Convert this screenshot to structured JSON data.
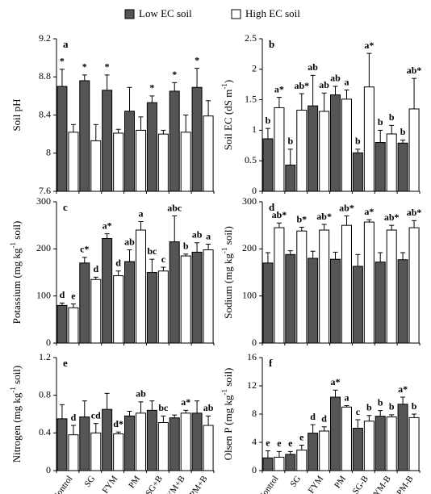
{
  "chart_data": [
    {
      "type": "bar",
      "panel": "a",
      "y_label": "Soil pH",
      "ylim": [
        7.6,
        9.2
      ],
      "yticks": [
        7.6,
        8,
        8.4,
        8.8,
        9.2
      ],
      "series": [
        {
          "name": "Low EC soil",
          "color": "#555555",
          "values": [
            8.7,
            8.76,
            8.66,
            8.44,
            8.53,
            8.65,
            8.69
          ],
          "errors": [
            0.18,
            0.06,
            0.16,
            0.25,
            0.07,
            0.09,
            0.2
          ],
          "labels": [
            "*",
            "*",
            "*",
            null,
            "*",
            "*",
            "*"
          ]
        },
        {
          "name": "High EC soil",
          "color": "#ffffff",
          "values": [
            8.22,
            8.13,
            8.21,
            8.24,
            8.2,
            8.22,
            8.39
          ],
          "errors": [
            0.08,
            0.17,
            0.04,
            0.14,
            0.04,
            0.18,
            0.16
          ]
        }
      ]
    },
    {
      "type": "bar",
      "panel": "b",
      "y_label": [
        "Soil EC (dS m",
        "-1",
        ")"
      ],
      "ylim": [
        0,
        2.5
      ],
      "yticks": [
        0,
        0.5,
        1,
        1.5,
        2,
        2.5
      ],
      "series": [
        {
          "color": "#555555",
          "values": [
            0.86,
            0.43,
            1.4,
            1.58,
            0.63,
            0.8,
            0.79
          ],
          "errors": [
            0.17,
            0.26,
            0.5,
            0.14,
            0.06,
            0.2,
            0.05
          ],
          "labels": [
            "b",
            "b",
            "ab",
            "ab",
            "b",
            "b",
            "b"
          ]
        },
        {
          "color": "#ffffff",
          "values": [
            1.37,
            1.33,
            1.31,
            1.51,
            1.71,
            0.94,
            1.35
          ],
          "errors": [
            0.17,
            0.27,
            0.3,
            0.15,
            0.55,
            0.14,
            0.5
          ],
          "labels": [
            "a*",
            "ab*",
            "ab",
            "a",
            "a*",
            "b",
            "ab*"
          ]
        }
      ]
    },
    {
      "type": "bar",
      "panel": "c",
      "y_label": [
        "Potassium (mg kg",
        "-1",
        " soil)"
      ],
      "ylim": [
        0,
        300
      ],
      "yticks": [
        0,
        100,
        200,
        300
      ],
      "series": [
        {
          "color": "#555555",
          "values": [
            80,
            170,
            222,
            173,
            150,
            215,
            193
          ],
          "errors": [
            5,
            12,
            10,
            25,
            28,
            55,
            20
          ],
          "labels": [
            "d",
            "c*",
            "a*",
            "ab",
            "bc",
            "abc",
            "ab"
          ]
        },
        {
          "color": "#ffffff",
          "values": [
            75,
            135,
            143,
            240,
            153,
            185,
            198
          ],
          "errors": [
            8,
            5,
            10,
            18,
            8,
            4,
            12
          ],
          "labels": [
            "e",
            "d",
            "d",
            "a",
            "c",
            "b",
            "a"
          ]
        }
      ]
    },
    {
      "type": "bar",
      "panel": "d",
      "y_label": [
        "Sodium (mg kg",
        "-1",
        " soil)"
      ],
      "ylim": [
        0,
        300
      ],
      "yticks": [
        0,
        100,
        200,
        300
      ],
      "series": [
        {
          "color": "#555555",
          "values": [
            170,
            188,
            180,
            178,
            163,
            172,
            177
          ],
          "errors": [
            22,
            8,
            15,
            15,
            25,
            20,
            15
          ]
        },
        {
          "color": "#ffffff",
          "values": [
            245,
            238,
            240,
            250,
            257,
            240,
            245
          ],
          "errors": [
            10,
            8,
            12,
            20,
            5,
            10,
            15
          ],
          "labels": [
            "ab*",
            "b*",
            "ab*",
            "ab*",
            "a*",
            "ab*",
            "ab*"
          ]
        }
      ]
    },
    {
      "type": "bar",
      "panel": "e",
      "y_label": [
        "Nitrogen (mg kg",
        "-1",
        " soil)"
      ],
      "ylim": [
        0,
        1.2
      ],
      "yticks": [
        0,
        0.4,
        0.8,
        1.2
      ],
      "categories": [
        "Control",
        "SG",
        "FYM",
        "PM",
        "SG+B",
        "FYM+B",
        "PM+B"
      ],
      "series": [
        {
          "color": "#555555",
          "values": [
            0.55,
            0.57,
            0.65,
            0.58,
            0.64,
            0.56,
            0.61
          ],
          "errors": [
            0.15,
            0.17,
            0.17,
            0.05,
            0.1,
            0.03,
            0.13
          ]
        },
        {
          "color": "#ffffff",
          "values": [
            0.38,
            0.4,
            0.39,
            0.61,
            0.51,
            0.61,
            0.48
          ],
          "errors": [
            0.1,
            0.1,
            0.02,
            0.12,
            0.07,
            0.03,
            0.1
          ],
          "labels": [
            "d",
            "cd",
            "d*",
            "ab",
            "bc",
            "a*",
            "ab"
          ]
        }
      ]
    },
    {
      "type": "bar",
      "panel": "f",
      "y_label": [
        "Olsen P (mg kg",
        "-1",
        " soil)"
      ],
      "ylim": [
        0,
        16
      ],
      "yticks": [
        0,
        4,
        8,
        12,
        16
      ],
      "categories": [
        "Control",
        "SG",
        "FYM",
        "PM",
        "SG-B",
        "FYM-B",
        "PM-B"
      ],
      "series": [
        {
          "color": "#555555",
          "values": [
            1.8,
            2.3,
            5.3,
            10.4,
            6.0,
            7.7,
            9.4
          ],
          "errors": [
            1.0,
            0.4,
            1.2,
            1.0,
            1.2,
            0.8,
            1.0
          ],
          "labels": [
            "e",
            "e",
            "d",
            "a*",
            "c",
            "b",
            "a*"
          ]
        },
        {
          "color": "#ffffff",
          "values": [
            1.9,
            2.9,
            5.6,
            9.0,
            7.0,
            7.6,
            7.5
          ],
          "errors": [
            0.8,
            0.7,
            0.6,
            0.2,
            0.8,
            0.3,
            0.5
          ],
          "labels": [
            "e",
            "e",
            "d",
            "a",
            "b",
            "b",
            "b"
          ]
        }
      ]
    }
  ]
}
